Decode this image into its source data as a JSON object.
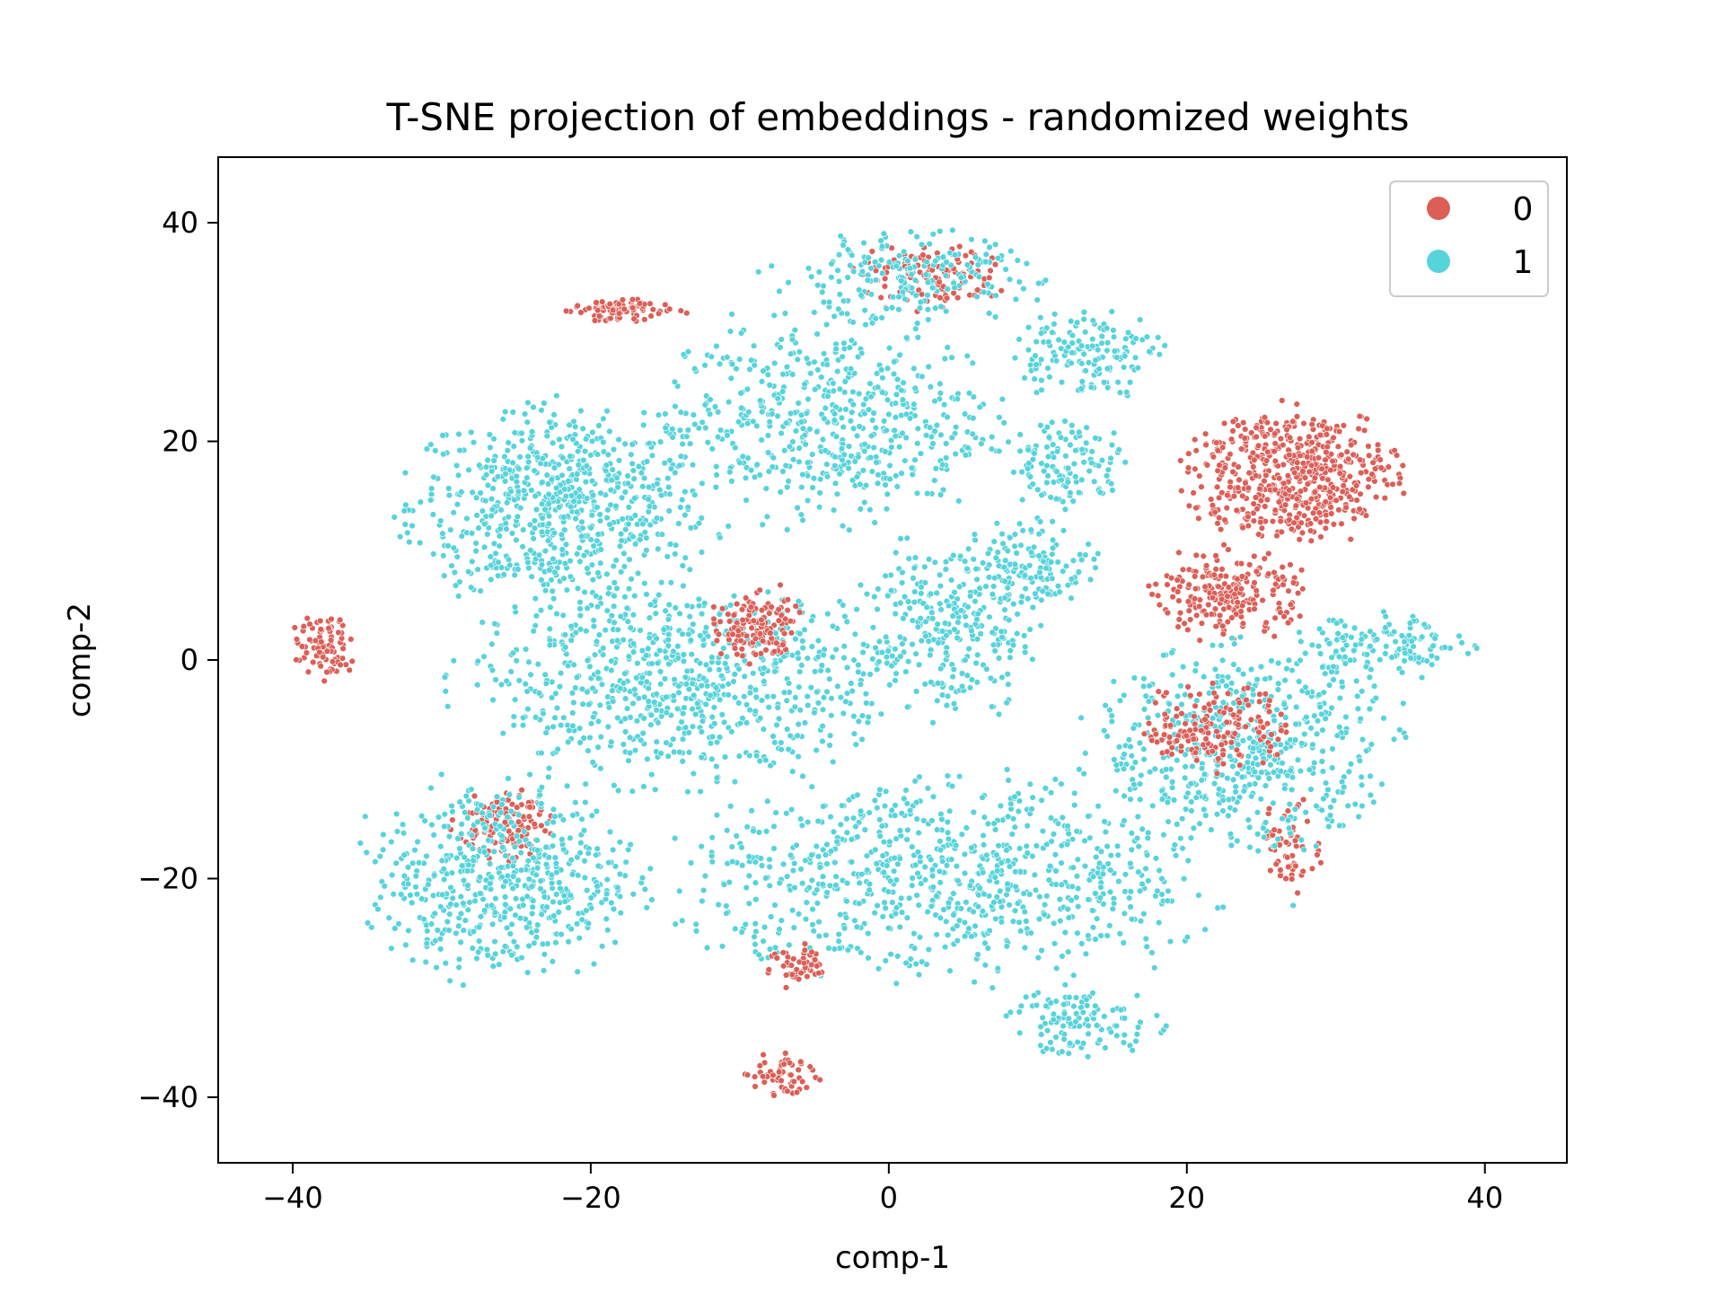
{
  "chart_data": {
    "type": "scatter",
    "title": "T-SNE projection of embeddings - randomized weights",
    "xlabel": "comp-1",
    "ylabel": "comp-2",
    "xlim": [
      -45,
      45.5
    ],
    "ylim": [
      -46,
      46
    ],
    "xticks": [
      -40,
      -20,
      0,
      20,
      40
    ],
    "yticks": [
      -40,
      -20,
      0,
      20,
      40
    ],
    "grid": false,
    "legend": {
      "placement": "top-right"
    },
    "series": [
      {
        "name": "0",
        "color": "#db5f57"
      },
      {
        "name": "1",
        "color": "#57d3db"
      }
    ],
    "clusters": [
      {
        "label": "1",
        "cx": -22,
        "cy": 14,
        "rx": 10,
        "ry": 9,
        "n": 700
      },
      {
        "label": "1",
        "cx": -14,
        "cy": -2,
        "rx": 14,
        "ry": 9,
        "n": 750
      },
      {
        "label": "1",
        "cx": -26,
        "cy": -20,
        "rx": 9,
        "ry": 9,
        "n": 550
      },
      {
        "label": "1",
        "cx": -4,
        "cy": 22,
        "rx": 11,
        "ry": 9,
        "n": 550
      },
      {
        "label": "1",
        "cx": 4,
        "cy": -20,
        "rx": 18,
        "ry": 9,
        "n": 800
      },
      {
        "label": "1",
        "cx": 4,
        "cy": 3,
        "rx": 6,
        "ry": 8,
        "n": 300
      },
      {
        "label": "1",
        "cx": 12,
        "cy": 18,
        "rx": 4,
        "ry": 4,
        "n": 120
      },
      {
        "label": "1",
        "cx": 10,
        "cy": 9,
        "rx": 4,
        "ry": 4,
        "n": 120
      },
      {
        "label": "1",
        "cx": 13,
        "cy": 28,
        "rx": 5,
        "ry": 4,
        "n": 150
      },
      {
        "label": "1",
        "cx": 1,
        "cy": 35,
        "rx": 9,
        "ry": 4,
        "n": 200
      },
      {
        "label": "1",
        "cx": 24,
        "cy": -8,
        "rx": 10,
        "ry": 9,
        "n": 550
      },
      {
        "label": "1",
        "cx": 33,
        "cy": 1,
        "rx": 6,
        "ry": 3,
        "n": 140
      },
      {
        "label": "1",
        "cx": 13,
        "cy": -33,
        "rx": 5,
        "ry": 3,
        "n": 120
      },
      {
        "label": "0",
        "cx": 27,
        "cy": 17,
        "rx": 7,
        "ry": 6,
        "n": 550
      },
      {
        "label": "0",
        "cx": 23,
        "cy": 6,
        "rx": 5,
        "ry": 4,
        "n": 220
      },
      {
        "label": "0",
        "cx": -9,
        "cy": 3,
        "rx": 3,
        "ry": 3,
        "n": 140
      },
      {
        "label": "0",
        "cx": -18,
        "cy": 32,
        "rx": 4,
        "ry": 1,
        "n": 90
      },
      {
        "label": "0",
        "cx": -38,
        "cy": 1,
        "rx": 2,
        "ry": 3,
        "n": 80
      },
      {
        "label": "0",
        "cx": -26,
        "cy": -15,
        "rx": 3,
        "ry": 3,
        "n": 120
      },
      {
        "label": "0",
        "cx": 22,
        "cy": -6,
        "rx": 5,
        "ry": 4,
        "n": 160
      },
      {
        "label": "0",
        "cx": 27,
        "cy": -17,
        "rx": 2,
        "ry": 4,
        "n": 60
      },
      {
        "label": "0",
        "cx": -7,
        "cy": -38,
        "rx": 3,
        "ry": 2,
        "n": 60
      },
      {
        "label": "0",
        "cx": 3,
        "cy": 35,
        "rx": 5,
        "ry": 3,
        "n": 120
      },
      {
        "label": "0",
        "cx": -6,
        "cy": -28,
        "rx": 2,
        "ry": 2,
        "n": 50
      }
    ]
  }
}
